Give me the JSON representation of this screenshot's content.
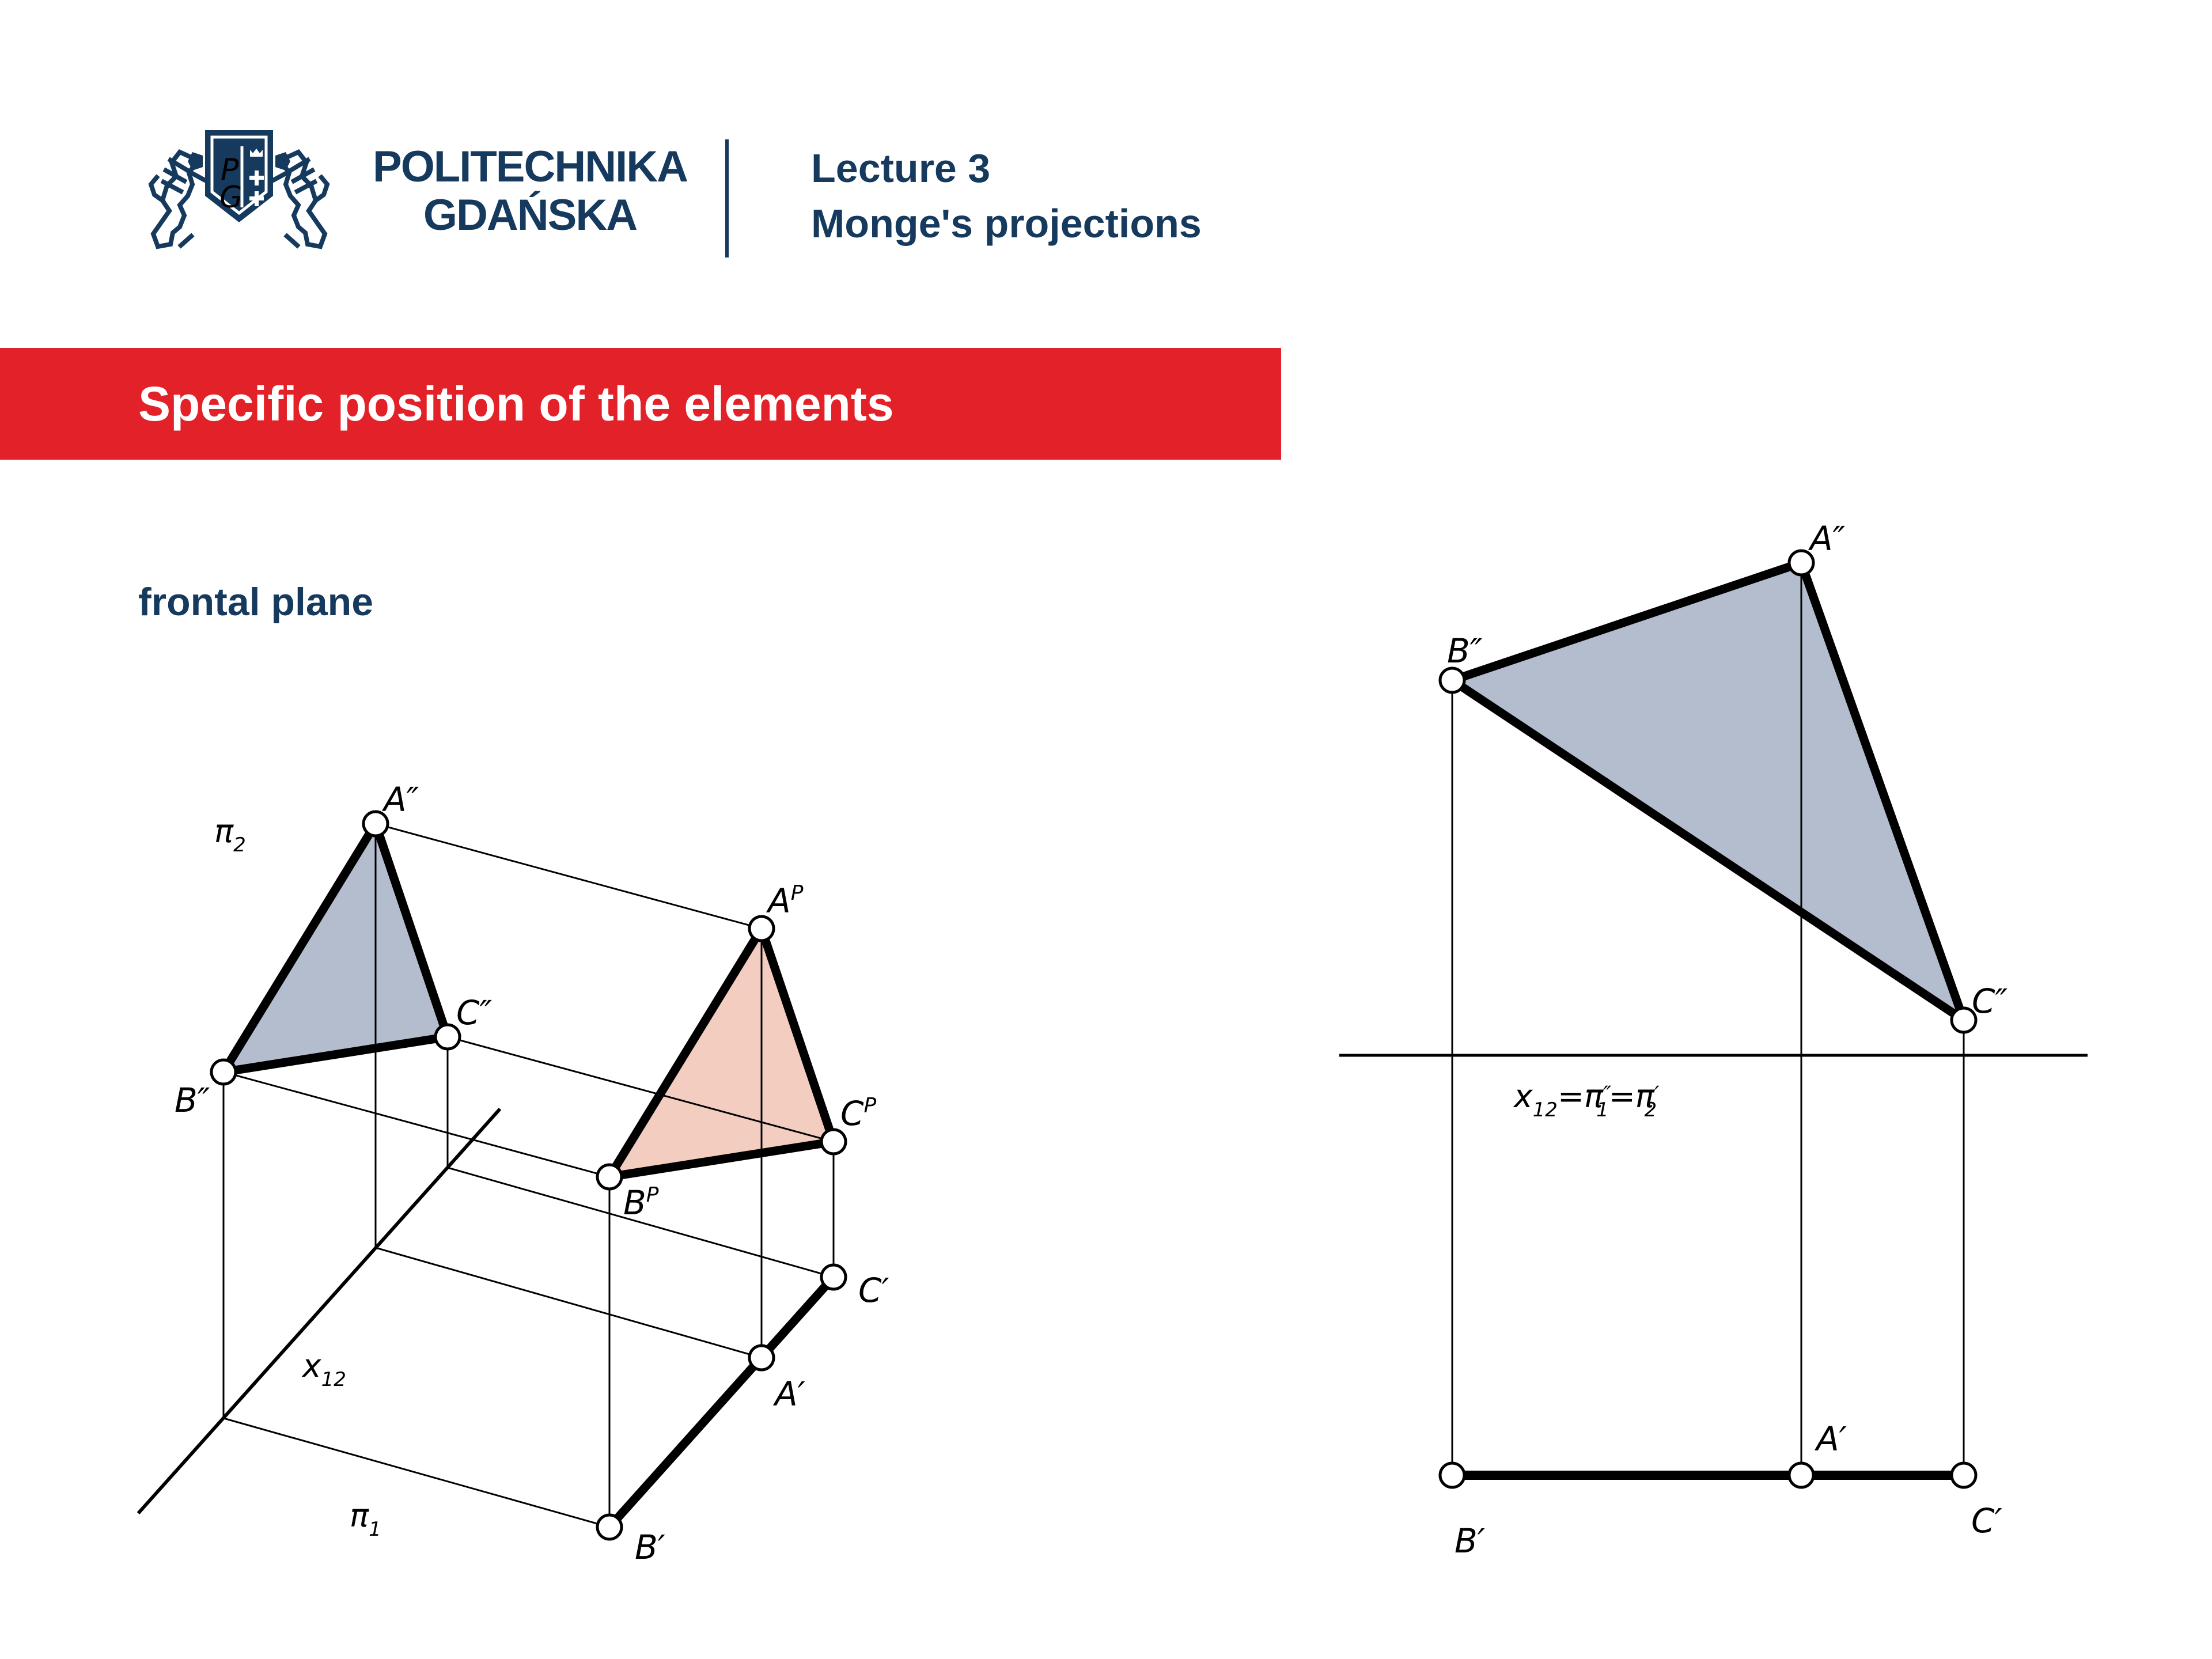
{
  "colors": {
    "navy": "#16395E",
    "red": "#E32128",
    "blue_fill": "#B4BDCE",
    "pink_fill": "#F3CDC0",
    "line": "#000000",
    "white": "#FFFFFF"
  },
  "header": {
    "brand_line1": "POLITECHNIKA",
    "brand_line2": "GDAŃSKA",
    "shield_letter_top": "P",
    "shield_letter_bottom": "G",
    "lecture_line1": "Lecture 3",
    "lecture_line2": "Monge's projections"
  },
  "title_bar": {
    "text": "Specific position of the elements"
  },
  "subtitle": "frontal plane",
  "pictorial": {
    "plane_pi2": [
      {
        "t": "π"
      },
      {
        "t": "2",
        "pos": "sub"
      }
    ],
    "plane_pi1": [
      {
        "t": "π"
      },
      {
        "t": "1",
        "pos": "sub"
      }
    ],
    "axis_label": [
      {
        "t": "x"
      },
      {
        "t": "12",
        "pos": "sub"
      }
    ],
    "A_front": "A″",
    "B_front": "B″",
    "C_front": "C″",
    "A_space": [
      {
        "t": "A"
      },
      {
        "t": "P",
        "pos": "sup"
      }
    ],
    "B_space": [
      {
        "t": "B"
      },
      {
        "t": "P",
        "pos": "sup"
      }
    ],
    "C_space": [
      {
        "t": "C"
      },
      {
        "t": "P",
        "pos": "sup"
      }
    ],
    "A_top": "A′",
    "B_top": "B′",
    "C_top": "C′"
  },
  "monge": {
    "A_front": "A″",
    "B_front": "B″",
    "C_front": "C″",
    "axis_label": [
      {
        "t": "x"
      },
      {
        "t": "12",
        "pos": "sub"
      },
      {
        "t": "=π"
      },
      {
        "t": "″",
        "pos": "sup2"
      },
      {
        "t": "1",
        "pos": "subback"
      },
      {
        "t": "=π"
      },
      {
        "t": "′",
        "pos": "sup2"
      },
      {
        "t": "2",
        "pos": "subback"
      }
    ],
    "A_top": "A′",
    "B_top": "B′",
    "C_top": "C′"
  }
}
